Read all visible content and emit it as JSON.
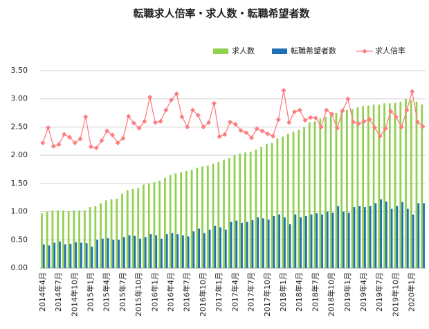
{
  "chart_data": {
    "type": "bar",
    "title": "転職求人倍率・求人数・転職希望者数",
    "categories": [
      "2014年4月",
      null,
      null,
      "2014年7月",
      null,
      null,
      "2014年10月",
      null,
      null,
      "2015年1月",
      null,
      null,
      "2015年4月",
      null,
      null,
      "2015年7月",
      null,
      null,
      "2015年10月",
      null,
      null,
      "2016年1月",
      null,
      null,
      "2016年4月",
      null,
      null,
      "2016年7月",
      null,
      null,
      "2016年10月",
      null,
      null,
      "2017年1月",
      null,
      null,
      "2017年4月",
      null,
      null,
      "2017年7月",
      null,
      null,
      "2017年10月",
      null,
      null,
      "2018年1月",
      null,
      null,
      "2018年4月",
      null,
      null,
      "2018年7月",
      null,
      null,
      "2018年10月",
      null,
      null,
      "2019年1月",
      null,
      null,
      "2019年4月",
      null,
      null,
      "2019年7月",
      null,
      null,
      "2019年10月",
      null,
      null,
      "2020年1月",
      null,
      null
    ],
    "series": [
      {
        "name": "求人数",
        "color": "#92d050",
        "values": [
          0.97,
          1.0,
          1.02,
          1.02,
          1.02,
          1.01,
          1.02,
          1.02,
          1.02,
          1.08,
          1.1,
          1.15,
          1.2,
          1.22,
          1.23,
          1.32,
          1.38,
          1.4,
          1.42,
          1.48,
          1.5,
          1.52,
          1.55,
          1.6,
          1.65,
          1.68,
          1.7,
          1.72,
          1.74,
          1.78,
          1.8,
          1.82,
          1.85,
          1.88,
          1.92,
          1.95,
          2.0,
          2.03,
          2.05,
          2.06,
          2.1,
          2.15,
          2.2,
          2.22,
          2.3,
          2.33,
          2.38,
          2.42,
          2.45,
          2.5,
          2.58,
          2.6,
          2.65,
          2.68,
          2.72,
          2.75,
          2.78,
          2.8,
          2.82,
          2.85,
          2.87,
          2.88,
          2.9,
          2.9,
          2.92,
          2.92,
          2.93,
          2.95,
          3.0,
          2.98,
          2.95,
          2.9
        ]
      },
      {
        "name": "転職希望者数",
        "color": "#1f6fb5",
        "values": [
          0.42,
          0.4,
          0.45,
          0.47,
          0.42,
          0.43,
          0.46,
          0.45,
          0.44,
          0.38,
          0.5,
          0.52,
          0.53,
          0.5,
          0.5,
          0.55,
          0.58,
          0.57,
          0.52,
          0.55,
          0.6,
          0.58,
          0.52,
          0.6,
          0.62,
          0.6,
          0.58,
          0.56,
          0.65,
          0.7,
          0.62,
          0.68,
          0.75,
          0.72,
          0.68,
          0.82,
          0.84,
          0.8,
          0.82,
          0.85,
          0.9,
          0.88,
          0.86,
          0.92,
          0.95,
          0.9,
          0.78,
          0.95,
          0.9,
          0.92,
          0.95,
          0.97,
          0.95,
          1.0,
          0.98,
          1.1,
          1.0,
          0.98,
          1.08,
          1.1,
          1.08,
          1.1,
          1.15,
          1.22,
          1.18,
          1.05,
          1.1,
          1.17,
          1.05,
          0.95,
          1.15,
          1.15
        ]
      },
      {
        "name": "求人倍率",
        "type": "line",
        "color": "#ff7c80",
        "values": [
          2.22,
          2.49,
          2.16,
          2.19,
          2.37,
          2.32,
          2.22,
          2.29,
          2.68,
          2.15,
          2.13,
          2.26,
          2.43,
          2.36,
          2.22,
          2.3,
          2.69,
          2.57,
          2.48,
          2.6,
          3.03,
          2.58,
          2.6,
          2.8,
          2.98,
          3.09,
          2.68,
          2.5,
          2.8,
          2.71,
          2.5,
          2.58,
          2.92,
          2.33,
          2.37,
          2.59,
          2.55,
          2.44,
          2.4,
          2.31,
          2.47,
          2.43,
          2.38,
          2.34,
          2.63,
          3.15,
          2.58,
          2.77,
          2.8,
          2.62,
          2.67,
          2.66,
          2.5,
          2.8,
          2.73,
          2.48,
          2.79,
          3.0,
          2.59,
          2.56,
          2.6,
          2.64,
          2.49,
          2.34,
          2.47,
          2.78,
          2.68,
          2.5,
          2.8,
          3.13,
          2.59,
          2.51
        ]
      }
    ],
    "ylim": [
      0,
      3.5
    ],
    "yticks": [
      {
        "value": 0,
        "label": "0.00"
      },
      {
        "value": 0.5,
        "label": "0.50"
      },
      {
        "value": 1,
        "label": "1.00"
      },
      {
        "value": 1.5,
        "label": "1.50"
      },
      {
        "value": 2,
        "label": "2.00"
      },
      {
        "value": 2.5,
        "label": "2.50"
      },
      {
        "value": 3,
        "label": "3.00"
      },
      {
        "value": 3.5,
        "label": "3.50"
      }
    ],
    "grid": true,
    "legend": "top"
  }
}
